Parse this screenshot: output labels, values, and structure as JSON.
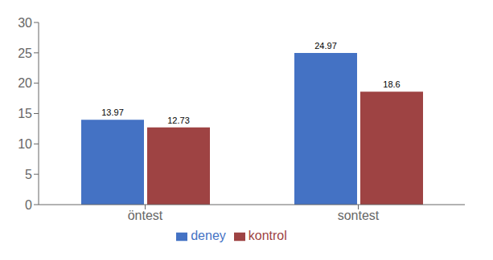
{
  "chart_data": {
    "type": "bar",
    "categories": [
      "öntest",
      "sontest"
    ],
    "series": [
      {
        "name": "deney",
        "color": "#4472C4",
        "values": [
          13.97,
          24.97
        ]
      },
      {
        "name": "kontrol",
        "color": "#9E4343",
        "values": [
          12.73,
          18.6
        ]
      }
    ],
    "ylim": [
      0,
      30
    ],
    "yticks": [
      0,
      5,
      10,
      15,
      20,
      25,
      30
    ],
    "grid": false,
    "legend": "bottom",
    "data_labels": true
  }
}
